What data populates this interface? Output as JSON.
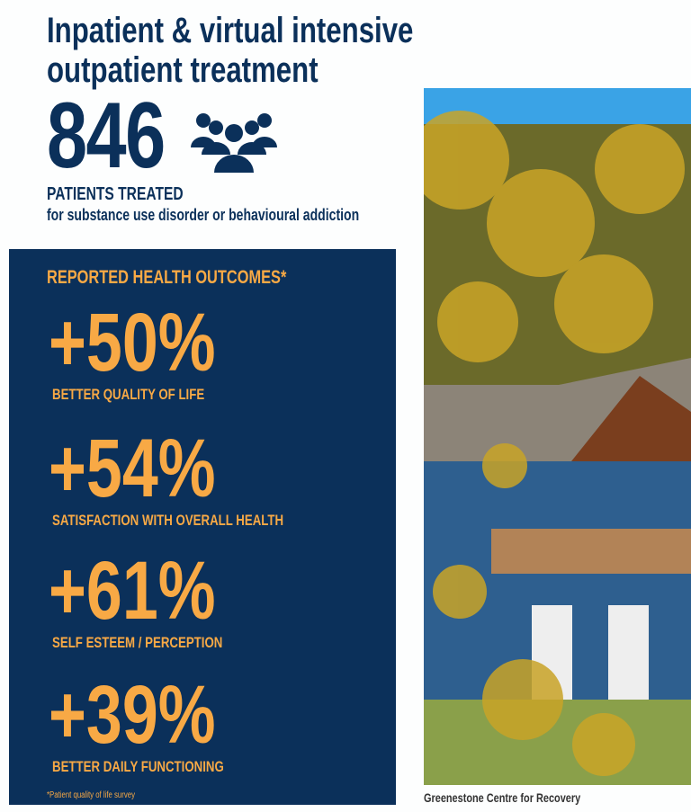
{
  "title": {
    "line1": "Inpatient & virtual intensive",
    "line2": "outpatient treatment"
  },
  "patients": {
    "count": "846",
    "label": "PATIENTS TREATED",
    "sublabel": "for substance use disorder or behavioural addiction",
    "icon": "group-of-people-icon"
  },
  "outcomes": {
    "heading": "REPORTED HEALTH OUTCOMES*",
    "items": [
      {
        "value": "+50%",
        "label": "BETTER QUALITY OF LIFE"
      },
      {
        "value": "+54%",
        "label": "SATISFACTION WITH OVERALL HEALTH"
      },
      {
        "value": "+61%",
        "label": "SELF ESTEEM / PERCEPTION"
      },
      {
        "value": "+39%",
        "label": "BETTER DAILY FUNCTIONING"
      }
    ],
    "footnote": "*Patient quality of life survey"
  },
  "photo": {
    "caption": "Greenestone Centre for Recovery"
  },
  "colors": {
    "navy": "#0b305a",
    "orange": "#f8a945"
  }
}
